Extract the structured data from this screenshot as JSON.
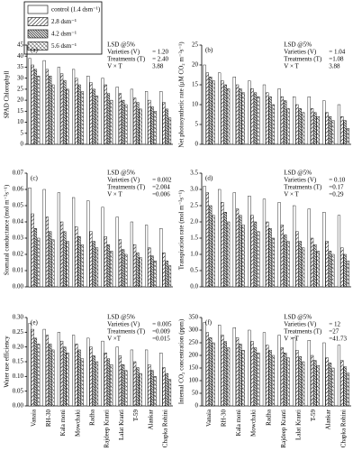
{
  "series_styles": [
    {
      "name": "control (1.4 dsm⁻¹)",
      "pattern": "solid"
    },
    {
      "name": "2.8 dsm⁻¹",
      "pattern": "hatch-light"
    },
    {
      "name": "4.2 dsm⁻¹",
      "pattern": "hatch-dark"
    },
    {
      "name": "5.6 dsm⁻¹",
      "pattern": "hatch-cross"
    }
  ],
  "categories": [
    "Vanaia",
    "RH-30",
    "Kala moni",
    "Mowchaki",
    "Radha",
    "Rajdeep Kranti",
    "Lalat Kranti",
    "T-59",
    "Alankar",
    "Chapka Rohini"
  ],
  "chart_data": [
    {
      "type": "bar",
      "label": "(a)",
      "ylabel": "SPAD Chlorophyll",
      "ylim": [
        0,
        45
      ],
      "yticks": [
        0,
        5,
        10,
        15,
        20,
        25,
        30,
        35,
        40,
        45
      ],
      "lsd": {
        "title": "LSD @5%",
        "rows": [
          [
            "Varieties (V)",
            "= 1.20"
          ],
          [
            "Treatments (T)",
            "= 2.40"
          ],
          [
            "V × T",
            "3.88"
          ]
        ]
      },
      "series": [
        {
          "values": [
            39,
            38,
            35,
            34,
            31,
            30,
            26,
            25,
            24,
            24
          ]
        },
        {
          "values": [
            36,
            34,
            32,
            30,
            28,
            27,
            23,
            21,
            20,
            19
          ]
        },
        {
          "values": [
            34,
            31,
            29,
            27,
            25,
            23,
            20,
            19,
            17,
            16
          ]
        },
        {
          "values": [
            31,
            27,
            25,
            24,
            22,
            20,
            18,
            16,
            15,
            12
          ]
        }
      ]
    },
    {
      "type": "bar",
      "label": "(b)",
      "ylabel": "Net photosynthetic rate (μM CO₂ m⁻²s⁻¹)",
      "ylim": [
        0,
        25
      ],
      "yticks": [
        0,
        5,
        10,
        15,
        20,
        25
      ],
      "lsd": {
        "title": "LSD @5%",
        "rows": [
          [
            "Varieties (V)",
            "= 1.04"
          ],
          [
            "Treatments (T)",
            "=1.08"
          ],
          [
            "V × T",
            "3.88"
          ]
        ]
      },
      "series": [
        {
          "values": [
            20,
            18,
            17,
            16,
            15,
            14,
            12,
            12,
            11,
            10
          ]
        },
        {
          "values": [
            18,
            16,
            15,
            14,
            13,
            12,
            10,
            9,
            8,
            7
          ]
        },
        {
          "values": [
            17,
            15,
            14,
            13,
            12,
            11,
            9,
            8,
            7,
            6
          ]
        },
        {
          "values": [
            16,
            14,
            13,
            12,
            10,
            9,
            8,
            7,
            6,
            4
          ]
        }
      ]
    },
    {
      "type": "bar",
      "label": "(c)",
      "ylabel": "Stomatal conductance (mol m⁻²s⁻¹)",
      "ylim": [
        0,
        0.07
      ],
      "yticks": [
        {
          "value": 0,
          "label": "0.00"
        },
        0.01,
        0.02,
        0.03,
        0.04,
        0.05,
        0.06,
        0.07
      ],
      "lsd": {
        "title": "LSD @5%",
        "rows": [
          [
            "Varieties (V)",
            "= 0.002"
          ],
          [
            "Treatments (T)",
            "=2.004"
          ],
          [
            "V × T",
            "=0.006"
          ]
        ]
      },
      "series": [
        {
          "values": [
            0.061,
            0.06,
            0.058,
            0.055,
            0.053,
            0.049,
            0.043,
            0.04,
            0.038,
            0.036
          ]
        },
        {
          "values": [
            0.045,
            0.043,
            0.04,
            0.037,
            0.034,
            0.031,
            0.029,
            0.026,
            0.024,
            0.021
          ]
        },
        {
          "values": [
            0.036,
            0.034,
            0.034,
            0.031,
            0.028,
            0.026,
            0.023,
            0.021,
            0.019,
            0.016
          ]
        },
        {
          "values": [
            0.03,
            0.029,
            0.028,
            0.026,
            0.024,
            0.022,
            0.02,
            0.018,
            0.016,
            0.013
          ]
        }
      ]
    },
    {
      "type": "bar",
      "label": "(d)",
      "ylabel": "Transpiration rate (mol m⁻²s⁻¹)",
      "ylim": [
        0,
        3.5
      ],
      "yticks": [
        {
          "value": 0,
          "label": "0.0"
        },
        0.5,
        {
          "value": 1,
          "label": "1.0"
        },
        1.5,
        {
          "value": 2,
          "label": "2.0"
        },
        2.5,
        {
          "value": 3,
          "label": "3.0"
        },
        3.5
      ],
      "lsd": {
        "title": "LSD @5%",
        "rows": [
          [
            "Varieties (V)",
            "= 0.10"
          ],
          [
            "Treatments (T)",
            "=0.17"
          ],
          [
            "V × T",
            "=0.29"
          ]
        ]
      },
      "series": [
        {
          "values": [
            3.1,
            3.0,
            2.9,
            2.8,
            2.7,
            2.6,
            2.5,
            2.4,
            2.3,
            2.2
          ]
        },
        {
          "values": [
            2.9,
            2.6,
            2.4,
            2.2,
            2.0,
            1.9,
            1.7,
            1.5,
            1.4,
            1.2
          ]
        },
        {
          "values": [
            2.5,
            2.3,
            2.2,
            2.0,
            1.8,
            1.6,
            1.4,
            1.3,
            1.1,
            1.0
          ]
        },
        {
          "values": [
            2.2,
            2.0,
            1.9,
            1.7,
            1.5,
            1.4,
            1.2,
            1.1,
            1.0,
            0.8
          ]
        }
      ]
    },
    {
      "type": "bar",
      "label": "(e)",
      "ylabel": "Water use efficiency",
      "ylim": [
        0,
        0.3
      ],
      "yticks": [
        {
          "value": 0,
          "label": "0.00"
        },
        0.05,
        {
          "value": 0.1,
          "label": "0.10"
        },
        0.15,
        {
          "value": 0.2,
          "label": "0.20"
        },
        0.25,
        {
          "value": 0.3,
          "label": "0.30"
        }
      ],
      "lsd": {
        "title": "LSD @5%",
        "rows": [
          [
            "Varieties (V)",
            "= 0.005"
          ],
          [
            "Treatments (T)",
            "=0.009"
          ],
          [
            "V ×T",
            "=0.015"
          ]
        ]
      },
      "series": [
        {
          "values": [
            0.28,
            0.26,
            0.25,
            0.24,
            0.23,
            0.22,
            0.2,
            0.19,
            0.19,
            0.18
          ]
        },
        {
          "values": [
            0.26,
            0.24,
            0.22,
            0.21,
            0.2,
            0.18,
            0.17,
            0.15,
            0.14,
            0.13
          ]
        },
        {
          "values": [
            0.23,
            0.21,
            0.2,
            0.19,
            0.17,
            0.16,
            0.14,
            0.13,
            0.12,
            0.11
          ]
        },
        {
          "values": [
            0.21,
            0.19,
            0.18,
            0.16,
            0.15,
            0.14,
            0.12,
            0.11,
            0.1,
            0.09
          ]
        }
      ]
    },
    {
      "type": "bar",
      "label": "(f)",
      "ylabel": "Internal CO₂ concentration (ppm)",
      "ylim": [
        0,
        350
      ],
      "yticks": [
        0,
        50,
        100,
        150,
        200,
        250,
        300,
        350
      ],
      "lsd": {
        "title": "LSD @5%",
        "rows": [
          [
            "Varieties (V)",
            "= 12"
          ],
          [
            "Treatments (T)",
            "=27"
          ],
          [
            "V × T",
            "=41.73"
          ]
        ]
      },
      "series": [
        {
          "values": [
            330,
            320,
            310,
            300,
            290,
            280,
            270,
            260,
            250,
            240
          ]
        },
        {
          "values": [
            290,
            280,
            270,
            255,
            240,
            230,
            220,
            200,
            190,
            180
          ]
        },
        {
          "values": [
            270,
            255,
            245,
            230,
            220,
            210,
            195,
            180,
            170,
            155
          ]
        },
        {
          "values": [
            250,
            230,
            220,
            210,
            200,
            190,
            175,
            160,
            150,
            130
          ]
        }
      ]
    }
  ]
}
